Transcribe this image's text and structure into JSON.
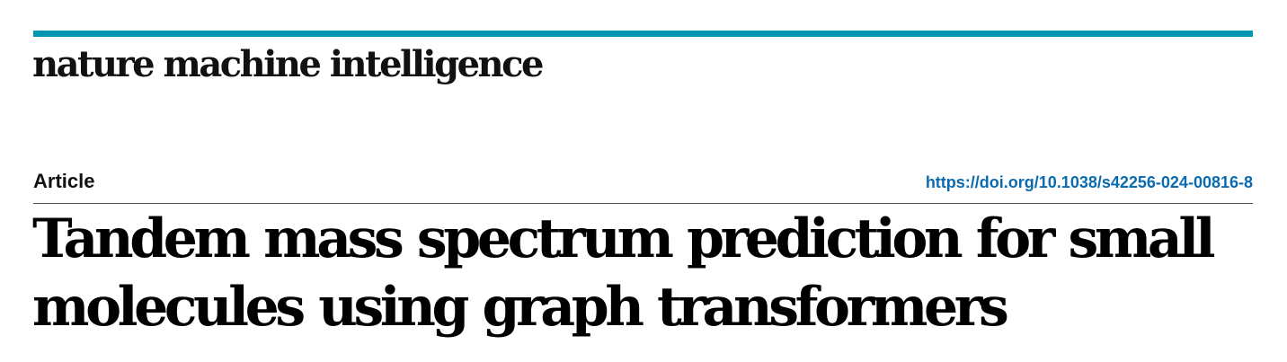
{
  "journal": {
    "name": "nature machine intelligence",
    "accent_color": "#0096B4"
  },
  "article": {
    "type": "Article",
    "doi_url": "https://doi.org/10.1038/s42256-024-00816-8",
    "doi_color": "#0B6BB0",
    "title_line1": "Tandem mass spectrum prediction for small",
    "title_line2": "molecules using graph transformers"
  }
}
